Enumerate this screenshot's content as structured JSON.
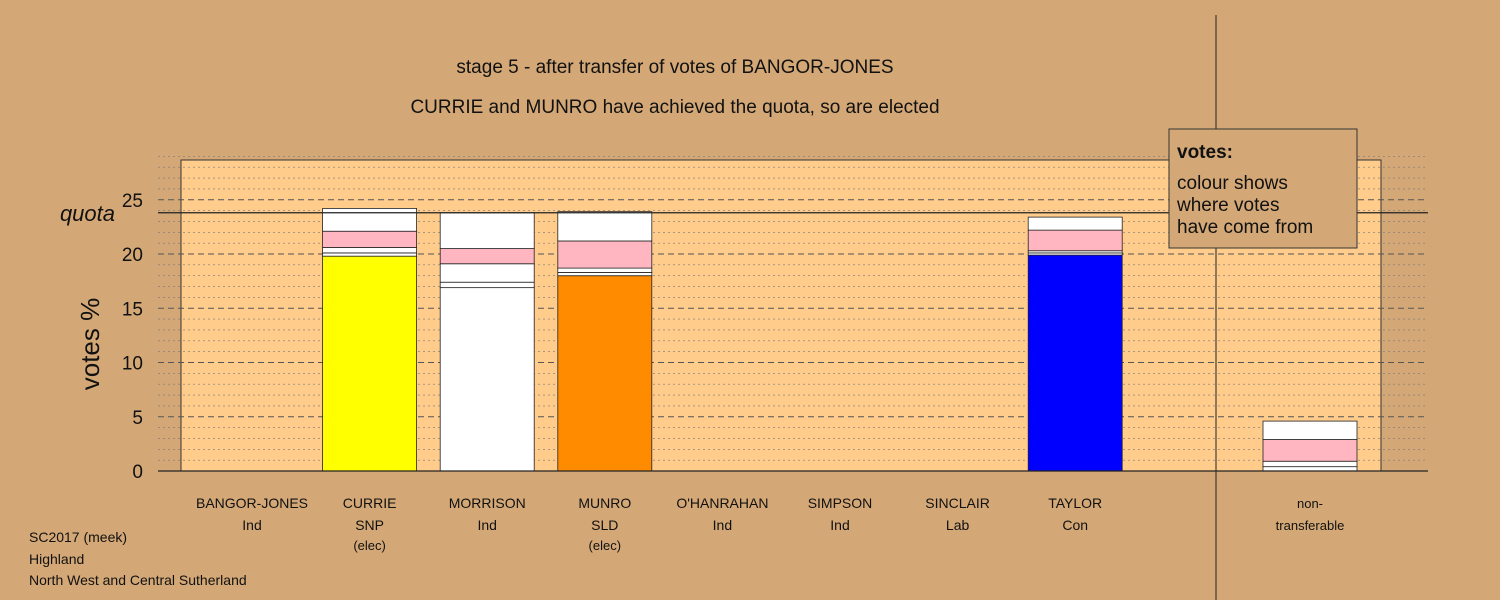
{
  "chart_data": {
    "type": "bar",
    "stacked": true,
    "title": "stage 5 - after transfer of votes of BANGOR-JONES",
    "subtitle": "CURRIE and MUNRO have achieved the quota, so are elected",
    "ylabel": "votes %",
    "ylim": [
      0,
      29
    ],
    "yticks": [
      0,
      5,
      10,
      15,
      20,
      25
    ],
    "quota": 23.8,
    "quota_label": "quota",
    "candidates": [
      {
        "name": "BANGOR-JONES",
        "party": "Ind",
        "status": "",
        "segments": []
      },
      {
        "name": "CURRIE",
        "party": "SNP",
        "status": "(elec)",
        "segments": [
          {
            "value": 19.8,
            "color": "#ffff00"
          },
          {
            "value": 0.3,
            "color": "#ffffff"
          },
          {
            "value": 0.5,
            "color": "#ffffff"
          },
          {
            "value": 1.5,
            "color": "#ffb6c1"
          },
          {
            "value": 2.1,
            "color": "#ffffff"
          }
        ]
      },
      {
        "name": "MORRISON",
        "party": "Ind",
        "status": "",
        "segments": [
          {
            "value": 16.9,
            "color": "#ffffff"
          },
          {
            "value": 0.5,
            "color": "#ffffff"
          },
          {
            "value": 1.7,
            "color": "#ffffff"
          },
          {
            "value": 1.4,
            "color": "#ffb6c1"
          },
          {
            "value": 3.3,
            "color": "#ffffff"
          }
        ]
      },
      {
        "name": "MUNRO",
        "party": "SLD",
        "status": "(elec)",
        "segments": [
          {
            "value": 18.0,
            "color": "#ff8c00"
          },
          {
            "value": 0.3,
            "color": "#ffffff"
          },
          {
            "value": 0.4,
            "color": "#ffffff"
          },
          {
            "value": 2.5,
            "color": "#ffb6c1"
          },
          {
            "value": 2.7,
            "color": "#ffffff"
          }
        ]
      },
      {
        "name": "O'HANRAHAN",
        "party": "Ind",
        "status": "",
        "segments": []
      },
      {
        "name": "SIMPSON",
        "party": "Ind",
        "status": "",
        "segments": []
      },
      {
        "name": "SINCLAIR",
        "party": "Lab",
        "status": "",
        "segments": []
      },
      {
        "name": "TAYLOR",
        "party": "Con",
        "status": "",
        "segments": [
          {
            "value": 19.9,
            "color": "#0000ff"
          },
          {
            "value": 0.2,
            "color": "#ffffff"
          },
          {
            "value": 0.2,
            "color": "#ffffff"
          },
          {
            "value": 1.9,
            "color": "#ffb6c1"
          },
          {
            "value": 1.2,
            "color": "#ffffff"
          }
        ]
      }
    ],
    "nontransferable": {
      "label1": "non-",
      "label2": "transferable",
      "segments": [
        {
          "value": 0.4,
          "color": "#ffffff"
        },
        {
          "value": 0.5,
          "color": "#ffffff"
        },
        {
          "value": 2.0,
          "color": "#ffb6c1"
        },
        {
          "value": 1.7,
          "color": "#ffffff"
        }
      ]
    },
    "legend": {
      "title": "votes:",
      "lines": [
        "colour shows",
        "where votes",
        "have come from"
      ],
      "position": "top-right"
    },
    "colors": {
      "background": "#d4a876",
      "plot_background": "#ffcc8c"
    }
  },
  "footer": [
    "SC2017 (meek)",
    "Highland",
    "North West and Central Sutherland"
  ]
}
